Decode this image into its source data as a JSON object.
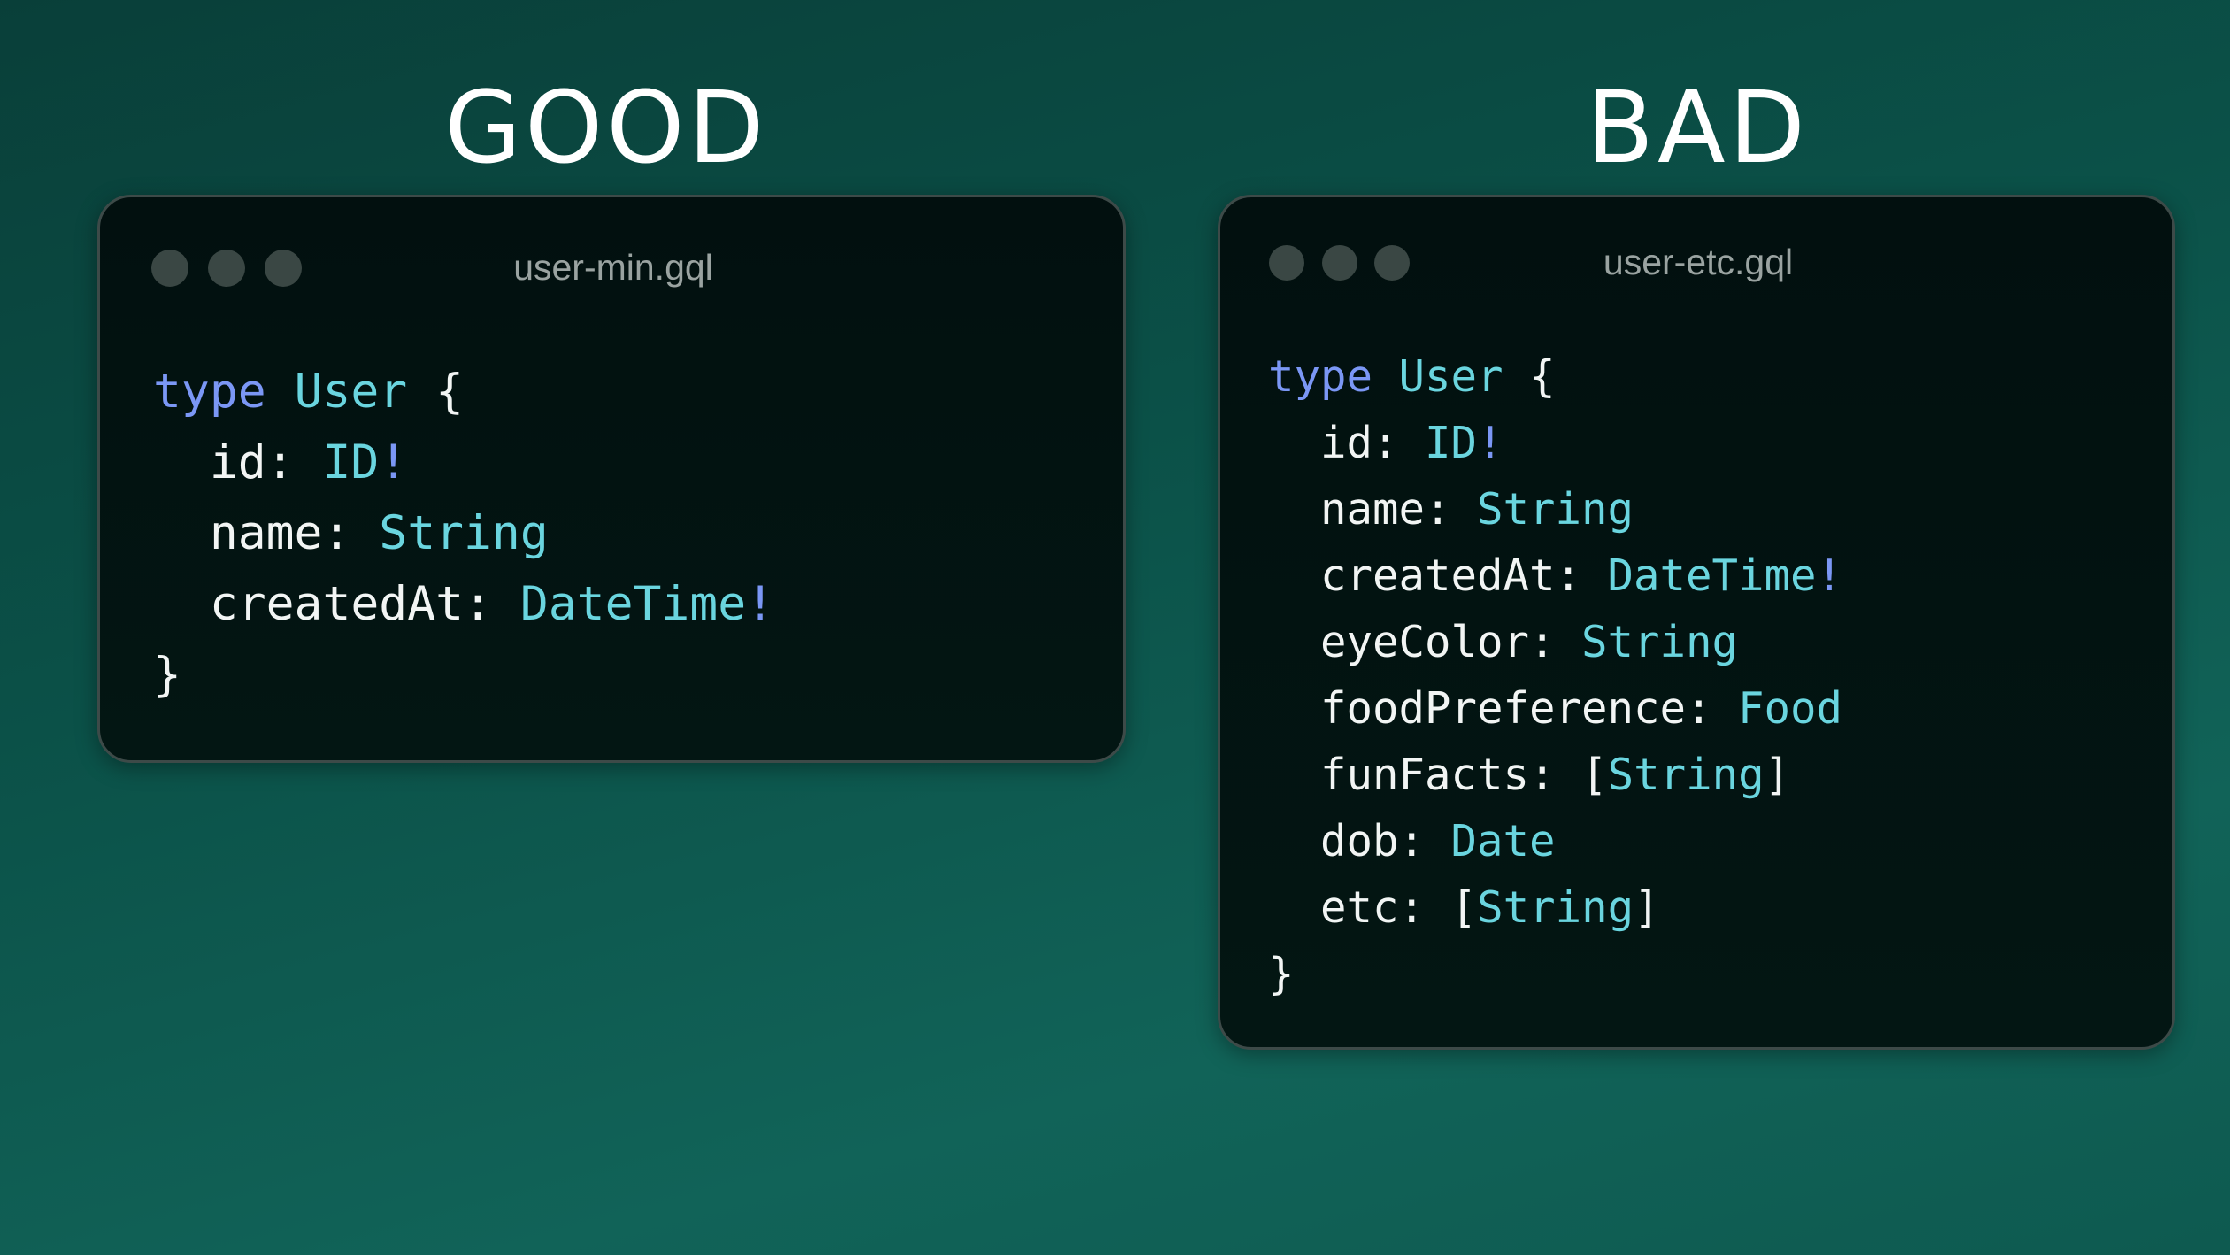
{
  "good": {
    "heading": "GOOD",
    "filename": "user-min.gql",
    "code": {
      "keyword": "type",
      "name": "User",
      "open": "{",
      "close": "}",
      "fields": [
        {
          "name": "id",
          "type": "ID",
          "bang": "!",
          "list": false
        },
        {
          "name": "name",
          "type": "String",
          "bang": "",
          "list": false
        },
        {
          "name": "createdAt",
          "type": "DateTime",
          "bang": "!",
          "list": false
        }
      ]
    }
  },
  "bad": {
    "heading": "BAD",
    "filename": "user-etc.gql",
    "code": {
      "keyword": "type",
      "name": "User",
      "open": "{",
      "close": "}",
      "fields": [
        {
          "name": "id",
          "type": "ID",
          "bang": "!",
          "list": false
        },
        {
          "name": "name",
          "type": "String",
          "bang": "",
          "list": false
        },
        {
          "name": "createdAt",
          "type": "DateTime",
          "bang": "!",
          "list": false
        },
        {
          "name": "eyeColor",
          "type": "String",
          "bang": "",
          "list": false
        },
        {
          "name": "foodPreference",
          "type": "Food",
          "bang": "",
          "list": false
        },
        {
          "name": "funFacts",
          "type": "String",
          "bang": "",
          "list": true
        },
        {
          "name": "dob",
          "type": "Date",
          "bang": "",
          "list": false
        },
        {
          "name": "etc",
          "type": "String",
          "bang": "",
          "list": true
        }
      ]
    }
  },
  "colors": {
    "keyword": "#7b97f5",
    "type": "#6ad5df",
    "text": "#f2f5f4",
    "window_dots": "#3a4744"
  }
}
